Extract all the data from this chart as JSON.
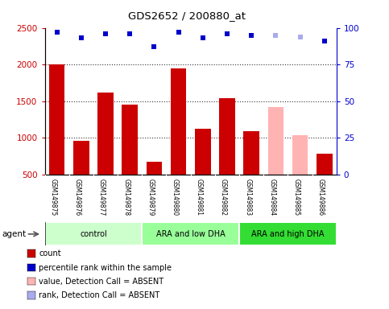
{
  "title": "GDS2652 / 200880_at",
  "samples": [
    "GSM149875",
    "GSM149876",
    "GSM149877",
    "GSM149878",
    "GSM149879",
    "GSM149880",
    "GSM149881",
    "GSM149882",
    "GSM149883",
    "GSM149884",
    "GSM149885",
    "GSM149886"
  ],
  "counts": [
    2000,
    960,
    1620,
    1450,
    670,
    1950,
    1120,
    1540,
    1090,
    1420,
    1040,
    790
  ],
  "bar_colors": [
    "#cc0000",
    "#cc0000",
    "#cc0000",
    "#cc0000",
    "#cc0000",
    "#cc0000",
    "#cc0000",
    "#cc0000",
    "#cc0000",
    "#ffb3b3",
    "#ffb3b3",
    "#cc0000"
  ],
  "percentile_ranks": [
    97,
    93,
    96,
    96,
    87,
    97,
    93,
    96,
    95,
    95,
    94,
    91
  ],
  "rank_colors": [
    "#0000cc",
    "#0000cc",
    "#0000cc",
    "#0000cc",
    "#0000cc",
    "#0000cc",
    "#0000cc",
    "#0000cc",
    "#0000cc",
    "#aaaaee",
    "#aaaaee",
    "#0000cc"
  ],
  "groups": [
    {
      "label": "control",
      "start": 0,
      "end": 4,
      "color": "#ccffcc"
    },
    {
      "label": "ARA and low DHA",
      "start": 4,
      "end": 8,
      "color": "#99ff99"
    },
    {
      "label": "ARA and high DHA",
      "start": 8,
      "end": 12,
      "color": "#33dd33"
    }
  ],
  "ylim_left": [
    500,
    2500
  ],
  "ylim_right": [
    0,
    100
  ],
  "yticks_left": [
    500,
    1000,
    1500,
    2000,
    2500
  ],
  "yticks_right": [
    0,
    25,
    50,
    75,
    100
  ],
  "left_axis_color": "#cc0000",
  "right_axis_color": "#0000cc",
  "grid_lines": [
    1000,
    1500,
    2000
  ],
  "legend_items": [
    {
      "label": "count",
      "color": "#cc0000"
    },
    {
      "label": "percentile rank within the sample",
      "color": "#0000cc"
    },
    {
      "label": "value, Detection Call = ABSENT",
      "color": "#ffb3b3"
    },
    {
      "label": "rank, Detection Call = ABSENT",
      "color": "#aaaaee"
    }
  ],
  "fig_width": 4.83,
  "fig_height": 3.84,
  "dpi": 100
}
